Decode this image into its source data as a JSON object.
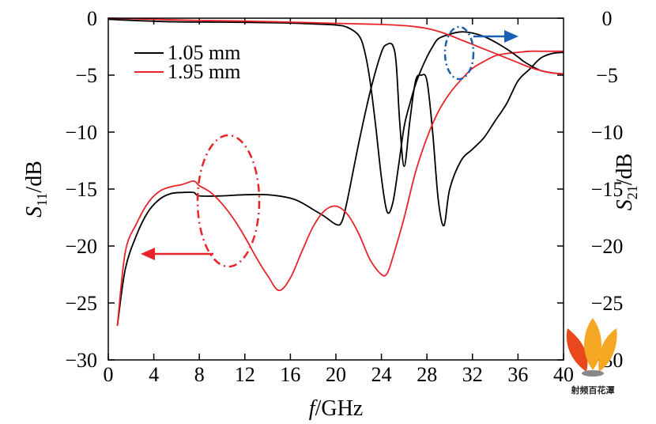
{
  "chart_data": {
    "type": "line",
    "xlabel": {
      "italic": "f",
      "rest": "/GHz"
    },
    "ylabel_left": {
      "base": "S",
      "sub": "11",
      "rest": "/dB"
    },
    "ylabel_right": {
      "base": "S",
      "sub": "21",
      "rest": "/dB"
    },
    "xlim": [
      0,
      40
    ],
    "ylim": [
      -30,
      0
    ],
    "x_ticks": [
      "0",
      "4",
      "8",
      "12",
      "16",
      "20",
      "24",
      "28",
      "32",
      "36",
      "40"
    ],
    "y_ticks": [
      "0",
      "−5",
      "−10",
      "−15",
      "−20",
      "−25",
      "−30"
    ],
    "grid": false,
    "legend_position": "top-left",
    "colors": {
      "series_1": "#000000",
      "series_2": "#e8232a",
      "left_arrow": "#e8232a",
      "right_arrow": "#1a5fb4"
    },
    "series": [
      {
        "name": "1.05 mm",
        "kind": "S11",
        "color": "#000000",
        "x": [
          0.8,
          1.5,
          2.5,
          3.5,
          4.5,
          5.5,
          6.5,
          7.5,
          8,
          10,
          12,
          14,
          16,
          17,
          18,
          19,
          20,
          20.5,
          21,
          22,
          23,
          24,
          24.5,
          25,
          25.3,
          25.6,
          26,
          26.5,
          27,
          27.5,
          28,
          28.5,
          29,
          29.5,
          30,
          31,
          32,
          33,
          34,
          35,
          36,
          37,
          38,
          39,
          40
        ],
        "y": [
          -27,
          -22,
          -19,
          -17,
          -15.9,
          -15.4,
          -15.3,
          -15.3,
          -15.6,
          -15.6,
          -15.5,
          -15.5,
          -15.8,
          -16.2,
          -16.8,
          -17.4,
          -18.1,
          -17.9,
          -16,
          -11,
          -6.5,
          -3,
          -2.3,
          -2.4,
          -4,
          -9,
          -13,
          -9,
          -5.5,
          -5,
          -5.5,
          -10,
          -16,
          -18.2,
          -15,
          -12.5,
          -11.5,
          -10.5,
          -9,
          -7.5,
          -5.5,
          -4.5,
          -3.5,
          -3.1,
          -3
        ]
      },
      {
        "name": "1.95 mm",
        "kind": "S11",
        "color": "#e8232a",
        "x": [
          0.8,
          1.5,
          2.5,
          3.5,
          4.5,
          5.5,
          6.5,
          7.5,
          8,
          9,
          10,
          11,
          12,
          13,
          14,
          15,
          16,
          17,
          18,
          19,
          20,
          21,
          22,
          23,
          24,
          24.5,
          25,
          26,
          27,
          28,
          29,
          30,
          31,
          32,
          33,
          34,
          35,
          36,
          37,
          38,
          39,
          40
        ],
        "y": [
          -27,
          -20.5,
          -18,
          -16.2,
          -15.2,
          -14.8,
          -14.6,
          -14.3,
          -14.7,
          -15.3,
          -16.3,
          -17.6,
          -19.2,
          -21,
          -22.6,
          -23.9,
          -22.8,
          -20.5,
          -18.3,
          -16.9,
          -16.5,
          -17.2,
          -18.9,
          -21.2,
          -22.5,
          -22.4,
          -21,
          -17.5,
          -13.5,
          -10.5,
          -8.2,
          -6.6,
          -5.4,
          -4.4,
          -3.8,
          -3.3,
          -3.1,
          -3,
          -2.9,
          -2.9,
          -2.9,
          -2.9
        ]
      },
      {
        "name": "1.05 mm",
        "kind": "S21",
        "color": "#000000",
        "x": [
          0,
          5,
          10,
          15,
          18,
          20,
          21,
          22,
          22.5,
          23,
          23.5,
          24,
          24.5,
          25,
          25.5,
          26,
          26.5,
          27,
          27.5,
          28,
          28.5,
          29,
          30,
          31,
          32,
          33,
          34,
          35,
          36,
          36.5,
          37,
          38,
          39,
          40
        ],
        "y": [
          -0.1,
          -0.3,
          -0.35,
          -0.4,
          -0.5,
          -0.6,
          -0.8,
          -1.5,
          -2.8,
          -5.5,
          -9.5,
          -14,
          -17,
          -16.2,
          -13,
          -9.5,
          -7.5,
          -5.8,
          -4.5,
          -3.4,
          -2.5,
          -1.8,
          -1.4,
          -1.2,
          -1.3,
          -1.6,
          -2.1,
          -2.7,
          -3.4,
          -3.8,
          -4.1,
          -4.6,
          -4.8,
          -4.9
        ]
      },
      {
        "name": "1.95 mm",
        "kind": "S21",
        "color": "#e8232a",
        "x": [
          0,
          4,
          8,
          12,
          16,
          20,
          22,
          24,
          26,
          27,
          28,
          29,
          30,
          31,
          32,
          33,
          34,
          35,
          36,
          37,
          38,
          39,
          40
        ],
        "y": [
          0,
          -0.1,
          -0.2,
          -0.25,
          -0.35,
          -0.45,
          -0.5,
          -0.55,
          -0.65,
          -0.75,
          -0.9,
          -1.15,
          -1.5,
          -1.9,
          -2.3,
          -2.7,
          -3.1,
          -3.5,
          -3.9,
          -4.3,
          -4.6,
          -4.8,
          -4.9
        ]
      }
    ]
  },
  "watermark": {
    "text": "射频百花潭"
  }
}
